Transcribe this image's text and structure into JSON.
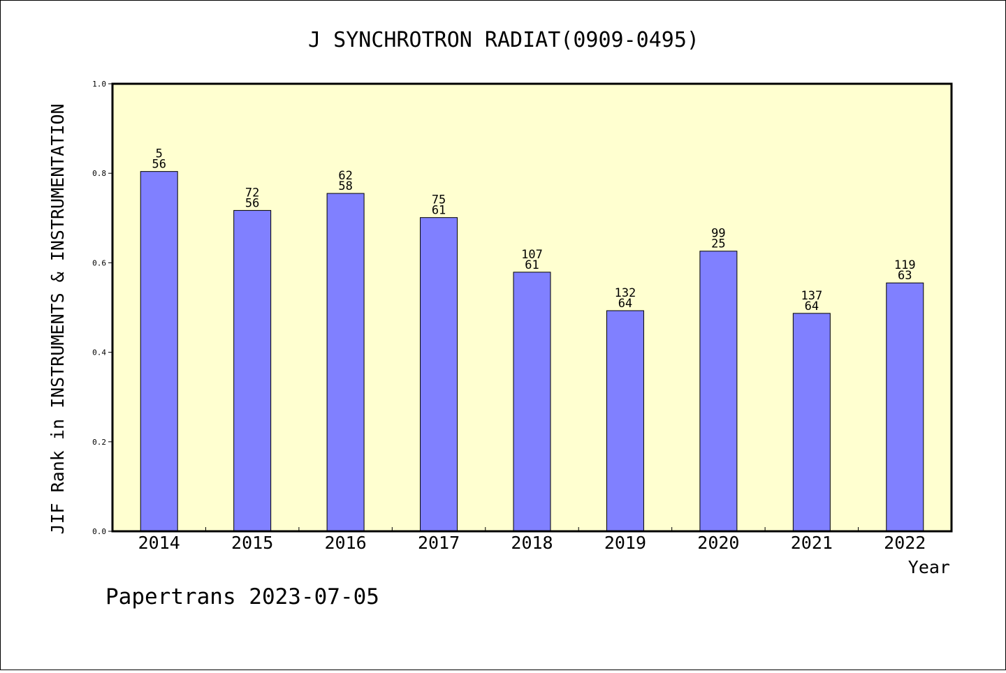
{
  "chart_data": {
    "type": "bar",
    "title": "J SYNCHROTRON RADIAT(0909-0495)",
    "xlabel": "Year",
    "ylabel": "JIF Rank in INSTRUMENTS & INSTRUMENTATION",
    "ylim": [
      0,
      1.0
    ],
    "yticks": [
      "0.0",
      "0.2",
      "0.4",
      "0.6",
      "0.8",
      "1.0"
    ],
    "categories": [
      "2014",
      "2015",
      "2016",
      "2017",
      "2018",
      "2019",
      "2020",
      "2021",
      "2022"
    ],
    "values": [
      0.804,
      0.717,
      0.755,
      0.701,
      0.579,
      0.493,
      0.626,
      0.487,
      0.555
    ],
    "labels_top": [
      "5",
      "72",
      "62",
      "75",
      "107",
      "132",
      "99",
      "137",
      "119"
    ],
    "labels_bottom": [
      "56",
      "56",
      "58",
      "61",
      "61",
      "64",
      "25",
      "64",
      "63"
    ],
    "grid": false,
    "colors": {
      "plot_background": "#ffffd0",
      "bar_fill": "#8080ff",
      "bar_stroke": "#000000"
    }
  },
  "footer": "Papertrans 2023-07-05"
}
